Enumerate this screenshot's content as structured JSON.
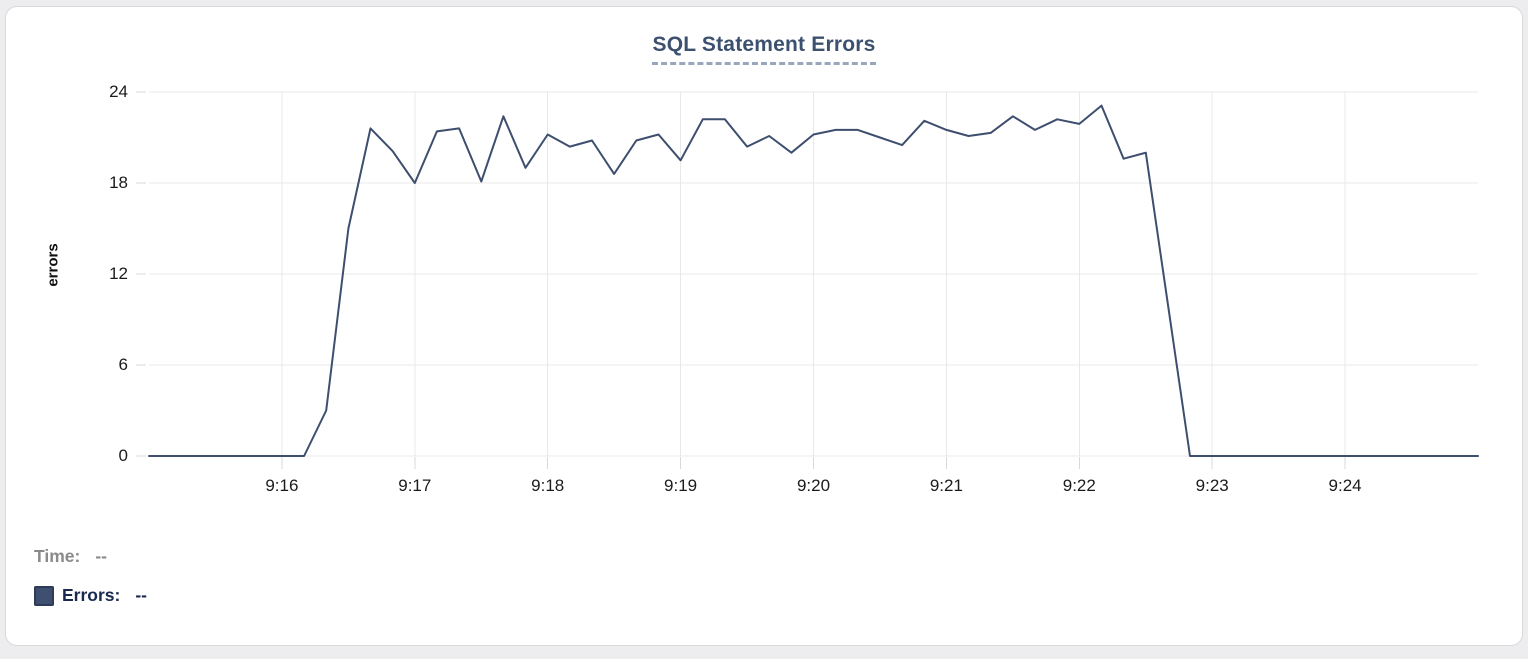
{
  "chart_data": {
    "type": "line",
    "title": "SQL Statement Errors",
    "xlabel": "",
    "ylabel": "errors",
    "grid": true,
    "legend_position": "none",
    "ylim": [
      0,
      24
    ],
    "yticks": [
      0,
      6,
      12,
      18,
      24
    ],
    "xlim": [
      "9:15:00",
      "9:25:00"
    ],
    "xticks": [
      "9:16",
      "9:17",
      "9:18",
      "9:19",
      "9:20",
      "9:21",
      "9:22",
      "9:23",
      "9:24"
    ],
    "x": [
      "9:15:00",
      "9:15:10",
      "9:15:20",
      "9:15:30",
      "9:15:40",
      "9:15:50",
      "9:16:00",
      "9:16:10",
      "9:16:20",
      "9:16:30",
      "9:16:40",
      "9:16:50",
      "9:17:00",
      "9:17:10",
      "9:17:20",
      "9:17:30",
      "9:17:40",
      "9:17:50",
      "9:18:00",
      "9:18:10",
      "9:18:20",
      "9:18:30",
      "9:18:40",
      "9:18:50",
      "9:19:00",
      "9:19:10",
      "9:19:20",
      "9:19:30",
      "9:19:40",
      "9:19:50",
      "9:20:00",
      "9:20:10",
      "9:20:20",
      "9:20:30",
      "9:20:40",
      "9:20:50",
      "9:21:00",
      "9:21:10",
      "9:21:20",
      "9:21:30",
      "9:21:40",
      "9:21:50",
      "9:22:00",
      "9:22:10",
      "9:22:20",
      "9:22:30",
      "9:22:40",
      "9:22:50",
      "9:23:00",
      "9:23:10",
      "9:23:20",
      "9:23:30",
      "9:23:40",
      "9:23:50",
      "9:24:00",
      "9:24:10",
      "9:24:20",
      "9:24:30",
      "9:24:40",
      "9:24:50",
      "9:25:00"
    ],
    "values": [
      0,
      0,
      0,
      0,
      0,
      0,
      0,
      0,
      3,
      15,
      21.6,
      20.1,
      18,
      21.4,
      21.6,
      18.1,
      22.4,
      19,
      21.2,
      20.4,
      20.8,
      18.6,
      20.8,
      21.2,
      19.5,
      22.2,
      22.2,
      20.4,
      21.1,
      20,
      21.2,
      21.5,
      21.5,
      21,
      20.5,
      22.1,
      21.5,
      21.1,
      21.3,
      22.4,
      21.5,
      22.2,
      21.9,
      23.1,
      19.6,
      20,
      10,
      0,
      0,
      0,
      0,
      0,
      0,
      0,
      0,
      0,
      0,
      0,
      0,
      0,
      0
    ]
  },
  "readouts": {
    "time_label": "Time:",
    "time_value": "--",
    "errors_label": "Errors:",
    "errors_value": "--"
  },
  "colors": {
    "line": "#3e4e6e",
    "title": "#3c516f",
    "title_underline": "#9aa6bb",
    "grid": "#e8e8e8",
    "axis_tick": "#d8d8d8",
    "axis_text": "#1b1b1b",
    "time_text": "#8a8a8a",
    "errors_text": "#1a2950",
    "swatch_fill": "#3e4f70",
    "swatch_border": "#2d3b58",
    "panel_border": "#d9d9dc",
    "page_bg": "#ededef"
  }
}
